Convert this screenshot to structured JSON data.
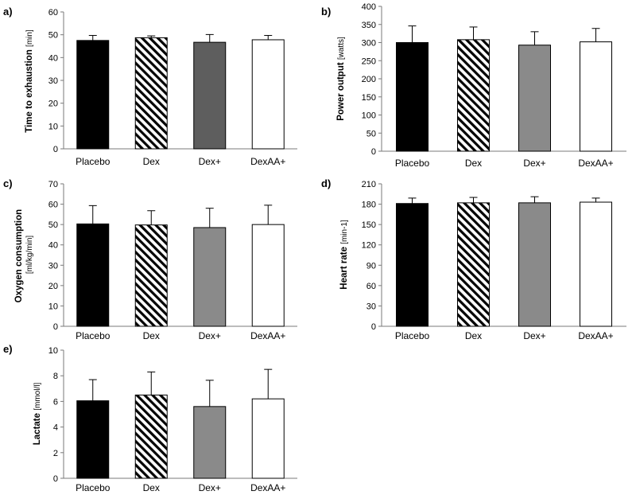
{
  "figure": {
    "background": "#ffffff",
    "fills": {
      "Placebo": "#000000",
      "Dex": "pattern-diagonal-stripes",
      "Dex+": "#8a8a8a",
      "DexAA+": "#ffffff"
    }
  },
  "chart_data": [
    {
      "id": "a",
      "label": "a)",
      "type": "bar",
      "ylabel": "Time to exhaustion",
      "yunit": "[min]",
      "ylim": [
        0,
        60
      ],
      "yticks": [
        0,
        10,
        20,
        30,
        40,
        50,
        60
      ],
      "categories": [
        "Placebo",
        "Dex",
        "Dex+",
        "DexAA+"
      ],
      "values": [
        47.5,
        48.7,
        46.7,
        47.8
      ],
      "errors": [
        2.2,
        0.8,
        3.4,
        1.9
      ],
      "dex_plus_fill": "#5e5e5e"
    },
    {
      "id": "b",
      "label": "b)",
      "type": "bar",
      "ylabel": "Power output",
      "yunit": "[watts]",
      "ylim": [
        0,
        400
      ],
      "yticks": [
        0,
        50,
        100,
        150,
        200,
        250,
        300,
        350,
        400
      ],
      "categories": [
        "Placebo",
        "Dex",
        "Dex+",
        "DexAA+"
      ],
      "values": [
        300,
        308,
        293,
        302
      ],
      "errors": [
        46,
        35,
        37,
        37
      ],
      "dex_plus_fill": "#8a8a8a"
    },
    {
      "id": "c",
      "label": "c)",
      "type": "bar",
      "ylabel": "Oxygen consumption",
      "yunit": "[ml/kg/min]",
      "ylim": [
        0,
        70
      ],
      "yticks": [
        0,
        10,
        20,
        30,
        40,
        50,
        60,
        70
      ],
      "categories": [
        "Placebo",
        "Dex",
        "Dex+",
        "DexAA+"
      ],
      "values": [
        50.3,
        49.8,
        48.5,
        50.0
      ],
      "errors": [
        9.0,
        7.0,
        9.5,
        9.5
      ],
      "dex_plus_fill": "#8a8a8a"
    },
    {
      "id": "d",
      "label": "d)",
      "type": "bar",
      "ylabel": "Heart rate",
      "yunit": "[min-1]",
      "ylim": [
        0,
        210
      ],
      "yticks": [
        0,
        30,
        60,
        90,
        120,
        150,
        180,
        210
      ],
      "categories": [
        "Placebo",
        "Dex",
        "Dex+",
        "DexAA+"
      ],
      "values": [
        181,
        182,
        182,
        183
      ],
      "errors": [
        8,
        8,
        9,
        6
      ],
      "dex_plus_fill": "#8a8a8a"
    },
    {
      "id": "e",
      "label": "e)",
      "type": "bar",
      "ylabel": "Lactate",
      "yunit": "[mmol/l]",
      "ylim": [
        0,
        10
      ],
      "yticks": [
        0,
        2,
        4,
        6,
        8,
        10
      ],
      "categories": [
        "Placebo",
        "Dex",
        "Dex+",
        "DexAA+"
      ],
      "values": [
        6.05,
        6.5,
        5.6,
        6.2
      ],
      "errors": [
        1.65,
        1.8,
        2.05,
        2.3
      ],
      "dex_plus_fill": "#8a8a8a"
    }
  ]
}
